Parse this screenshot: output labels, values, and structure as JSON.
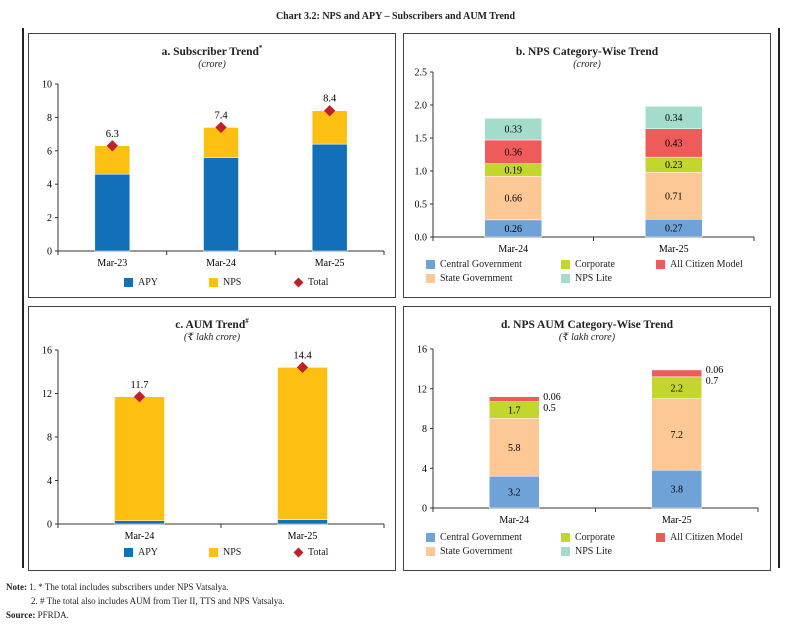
{
  "title": "Chart 3.2: NPS and APY – Subscribers and AUM Trend",
  "chart_data": [
    {
      "id": "a",
      "type": "bar",
      "stacked": true,
      "title": "a. Subscriber Trend",
      "title_sup": "*",
      "unit": "(crore)",
      "categories": [
        "Mar-23",
        "Mar-24",
        "Mar-25"
      ],
      "ylim": [
        0,
        10
      ],
      "yticks": [
        0,
        2,
        4,
        6,
        8,
        10
      ],
      "series": [
        {
          "name": "APY",
          "color": "#1170b8",
          "values": [
            4.6,
            5.6,
            6.4
          ]
        },
        {
          "name": "NPS",
          "color": "#fdbf12",
          "values": [
            1.7,
            1.8,
            2.0
          ]
        }
      ],
      "total": {
        "name": "Total",
        "color": "#c0202a",
        "values": [
          6.3,
          7.4,
          8.4
        ],
        "labels": [
          "6.3",
          "7.4",
          "8.4"
        ]
      }
    },
    {
      "id": "b",
      "type": "bar",
      "stacked": true,
      "title": "b. NPS Category-Wise Trend",
      "title_sup": "",
      "unit": "(crore)",
      "categories": [
        "Mar-24",
        "Mar-25"
      ],
      "ylim": [
        0,
        2.5
      ],
      "yticks": [
        "0.0",
        "0.5",
        "1.0",
        "1.5",
        "2.0",
        "2.5"
      ],
      "series": [
        {
          "name": "Central Government",
          "color": "#6fa3d8",
          "values": [
            0.26,
            0.27
          ]
        },
        {
          "name": "State Government",
          "color": "#fdc895",
          "values": [
            0.66,
            0.71
          ]
        },
        {
          "name": "Corporate",
          "color": "#c3d62e",
          "values": [
            0.19,
            0.23
          ]
        },
        {
          "name": "All Citizen Model",
          "color": "#ef5b5b",
          "values": [
            0.36,
            0.43
          ]
        },
        {
          "name": "NPS Lite",
          "color": "#a3dccb",
          "values": [
            0.33,
            0.34
          ]
        }
      ]
    },
    {
      "id": "c",
      "type": "bar",
      "stacked": true,
      "title": "c. AUM Trend",
      "title_sup": "#",
      "unit": "(₹ lakh crore)",
      "categories": [
        "Mar-24",
        "Mar-25"
      ],
      "ylim": [
        0,
        16
      ],
      "yticks": [
        0,
        4,
        8,
        12,
        16
      ],
      "series": [
        {
          "name": "APY",
          "color": "#1170b8",
          "values": [
            0.3,
            0.4
          ]
        },
        {
          "name": "NPS",
          "color": "#fdbf12",
          "values": [
            11.4,
            14.0
          ]
        }
      ],
      "total": {
        "name": "Total",
        "color": "#c0202a",
        "values": [
          11.7,
          14.4
        ],
        "labels": [
          "11.7",
          "14.4"
        ]
      }
    },
    {
      "id": "d",
      "type": "bar",
      "stacked": true,
      "title": "d. NPS AUM Category-Wise Trend",
      "title_sup": "",
      "unit": "(₹ lakh crore)",
      "categories": [
        "Mar-24",
        "Mar-25"
      ],
      "ylim": [
        0,
        16
      ],
      "yticks": [
        0,
        4,
        8,
        12,
        16
      ],
      "series": [
        {
          "name": "Central Government",
          "color": "#6fa3d8",
          "values": [
            3.2,
            3.8
          ]
        },
        {
          "name": "State Government",
          "color": "#fdc895",
          "values": [
            5.8,
            7.2
          ]
        },
        {
          "name": "Corporate",
          "color": "#c3d62e",
          "values": [
            1.7,
            2.2
          ]
        },
        {
          "name": "All Citizen Model",
          "color": "#ef5b5b",
          "values": [
            0.5,
            0.7
          ]
        },
        {
          "name": "NPS Lite",
          "color": "#a3dccb",
          "values": [
            0.06,
            0.06
          ]
        }
      ]
    }
  ],
  "legend_order_bd": [
    [
      0,
      2,
      3
    ],
    [
      1,
      4
    ]
  ],
  "notes": {
    "label": "Note:",
    "items": [
      "1. * The total includes subscribers under NPS Vatsalya.",
      "2. # The total also includes AUM from Tier II, TTS and NPS Vatsalya."
    ],
    "source_label": "Source:",
    "source": "PFRDA."
  }
}
